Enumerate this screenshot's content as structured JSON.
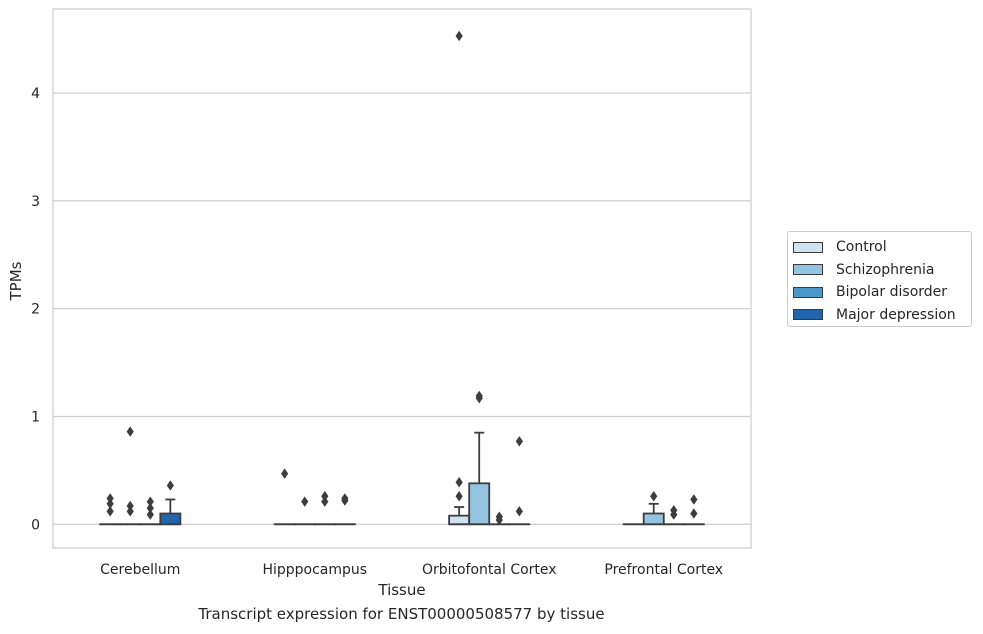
{
  "caption": "Transcript expression for ENST00000508577 by tissue",
  "chart_data": {
    "type": "boxplot",
    "xlabel": "Tissue",
    "ylabel": "TPMs",
    "ylim": [
      -0.22,
      4.78
    ],
    "yticks": [
      0,
      1,
      2,
      3,
      4
    ],
    "grid": true,
    "legend_position": "right",
    "categories": [
      "Cerebellum",
      "Hipppocampus",
      "Orbitofontal Cortex",
      "Prefrontal Cortex"
    ],
    "series": [
      {
        "name": "Control",
        "color": "#d0e1f2",
        "boxes": [
          {
            "q1": 0,
            "median": 0,
            "q3": 0,
            "whisker_low": 0,
            "whisker_high": 0,
            "outliers": [
              0.12,
              0.19,
              0.24
            ]
          },
          {
            "q1": 0,
            "median": 0,
            "q3": 0,
            "whisker_low": 0,
            "whisker_high": 0,
            "outliers": [
              0.47
            ]
          },
          {
            "q1": 0,
            "median": 0,
            "q3": 0.08,
            "whisker_low": 0,
            "whisker_high": 0.16,
            "outliers": [
              0.26,
              0.39,
              4.53
            ]
          },
          {
            "q1": 0,
            "median": 0,
            "q3": 0,
            "whisker_low": 0,
            "whisker_high": 0,
            "outliers": []
          }
        ]
      },
      {
        "name": "Schizophrenia",
        "color": "#94c4df",
        "boxes": [
          {
            "q1": 0,
            "median": 0,
            "q3": 0,
            "whisker_low": 0,
            "whisker_high": 0,
            "outliers": [
              0.12,
              0.17,
              0.86
            ]
          },
          {
            "q1": 0,
            "median": 0,
            "q3": 0,
            "whisker_low": 0,
            "whisker_high": 0,
            "outliers": [
              0.21
            ]
          },
          {
            "q1": 0,
            "median": 0,
            "q3": 0.38,
            "whisker_low": 0,
            "whisker_high": 0.85,
            "outliers": [
              1.17,
              1.19
            ]
          },
          {
            "q1": 0,
            "median": 0,
            "q3": 0.1,
            "whisker_low": 0,
            "whisker_high": 0.19,
            "outliers": [
              0.26
            ]
          }
        ]
      },
      {
        "name": "Bipolar disorder",
        "color": "#4a98c9",
        "boxes": [
          {
            "q1": 0,
            "median": 0,
            "q3": 0,
            "whisker_low": 0,
            "whisker_high": 0,
            "outliers": [
              0.09,
              0.15,
              0.21
            ]
          },
          {
            "q1": 0,
            "median": 0,
            "q3": 0,
            "whisker_low": 0,
            "whisker_high": 0,
            "outliers": [
              0.21,
              0.26
            ]
          },
          {
            "q1": 0,
            "median": 0,
            "q3": 0,
            "whisker_low": 0,
            "whisker_high": 0,
            "outliers": [
              0.04,
              0.07
            ]
          },
          {
            "q1": 0,
            "median": 0,
            "q3": 0,
            "whisker_low": 0,
            "whisker_high": 0,
            "outliers": [
              0.09,
              0.13
            ]
          }
        ]
      },
      {
        "name": "Major depression",
        "color": "#2166ac",
        "boxes": [
          {
            "q1": 0,
            "median": 0,
            "q3": 0.1,
            "whisker_low": 0,
            "whisker_high": 0.23,
            "outliers": [
              0.36
            ]
          },
          {
            "q1": 0,
            "median": 0,
            "q3": 0,
            "whisker_low": 0,
            "whisker_high": 0,
            "outliers": [
              0.22,
              0.24
            ]
          },
          {
            "q1": 0,
            "median": 0,
            "q3": 0,
            "whisker_low": 0,
            "whisker_high": 0,
            "outliers": [
              0.12,
              0.77
            ]
          },
          {
            "q1": 0,
            "median": 0,
            "q3": 0,
            "whisker_low": 0,
            "whisker_high": 0,
            "outliers": [
              0.1,
              0.23
            ]
          }
        ]
      }
    ]
  }
}
